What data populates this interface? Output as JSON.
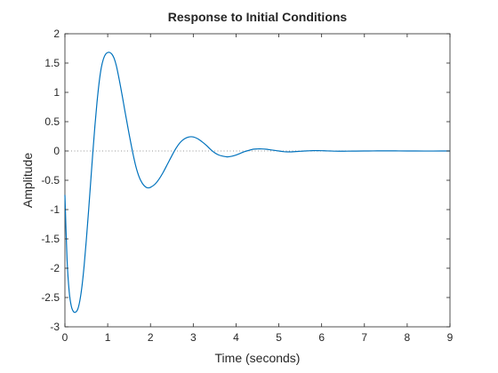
{
  "chart_data": {
    "type": "line",
    "title": "Response to Initial Conditions",
    "xlabel": "Time (seconds)",
    "ylabel": "Amplitude",
    "xlim": [
      0,
      9
    ],
    "ylim": [
      -3,
      2
    ],
    "xticks": [
      0,
      1,
      2,
      3,
      4,
      5,
      6,
      7,
      8,
      9
    ],
    "xtick_labels": [
      "0",
      "1",
      "2",
      "3",
      "4",
      "5",
      "6",
      "7",
      "8",
      "9"
    ],
    "yticks": [
      2,
      1.5,
      1,
      0.5,
      0,
      -0.5,
      -1,
      -1.5,
      -2,
      -2.5,
      -3
    ],
    "ytick_labels": [
      "2",
      "1.5",
      "1",
      "0.5",
      "0",
      "-0.5",
      "-1",
      "-1.5",
      "-2",
      "-2.5",
      "-3"
    ],
    "grid": false,
    "reference_line": {
      "y": 0,
      "style": "dotted",
      "color": "#999999"
    },
    "line_color": "#0072bd",
    "series": [
      {
        "x": [
          0,
          0.05,
          0.1,
          0.15,
          0.2,
          0.25,
          0.3,
          0.35,
          0.4,
          0.45,
          0.5,
          0.55,
          0.6,
          0.65,
          0.7,
          0.75,
          0.8,
          0.85,
          0.9,
          0.95,
          1.0,
          1.05,
          1.1,
          1.15,
          1.2,
          1.25,
          1.3,
          1.35,
          1.4,
          1.45,
          1.5,
          1.55,
          1.6,
          1.65,
          1.7,
          1.75,
          1.8,
          1.85,
          1.9,
          1.95,
          2.0,
          2.1,
          2.2,
          2.3,
          2.4,
          2.5,
          2.6,
          2.7,
          2.8,
          2.9,
          3.0,
          3.1,
          3.2,
          3.3,
          3.4,
          3.5,
          3.6,
          3.7,
          3.8,
          3.9,
          4.0,
          4.1,
          4.2,
          4.3,
          4.4,
          4.5,
          4.6,
          4.7,
          4.8,
          4.9,
          5.0,
          5.1,
          5.2,
          5.3,
          5.4,
          5.5,
          5.6,
          5.7,
          5.8,
          5.9,
          6.0,
          6.1,
          6.2,
          6.3,
          6.4,
          6.5,
          6.6,
          6.8,
          7.0,
          7.2,
          7.4,
          7.6,
          7.8,
          8.0,
          8.2,
          8.4,
          8.6,
          8.8,
          9.0
        ],
        "y": [
          -0.75,
          -1.85,
          -2.4,
          -2.65,
          -2.74,
          -2.75,
          -2.7,
          -2.55,
          -2.3,
          -1.95,
          -1.52,
          -1.05,
          -0.55,
          -0.05,
          0.42,
          0.83,
          1.17,
          1.42,
          1.57,
          1.65,
          1.68,
          1.68,
          1.65,
          1.58,
          1.46,
          1.29,
          1.1,
          0.9,
          0.69,
          0.49,
          0.29,
          0.1,
          -0.08,
          -0.24,
          -0.37,
          -0.47,
          -0.54,
          -0.59,
          -0.62,
          -0.63,
          -0.62,
          -0.57,
          -0.48,
          -0.36,
          -0.22,
          -0.08,
          0.05,
          0.15,
          0.21,
          0.24,
          0.24,
          0.21,
          0.16,
          0.1,
          0.03,
          -0.03,
          -0.07,
          -0.09,
          -0.1,
          -0.09,
          -0.07,
          -0.04,
          -0.01,
          0.01,
          0.03,
          0.035,
          0.035,
          0.03,
          0.02,
          0.01,
          0.0,
          -0.01,
          -0.015,
          -0.015,
          -0.01,
          -0.005,
          0.0,
          0.003,
          0.006,
          0.006,
          0.005,
          0.002,
          0.0,
          -0.003,
          -0.004,
          -0.004,
          -0.003,
          -0.002,
          0.0,
          0.001,
          0.002,
          0.002,
          0.001,
          0.0,
          0.0,
          -0.001,
          -0.001,
          0.0,
          0.0
        ]
      }
    ]
  }
}
